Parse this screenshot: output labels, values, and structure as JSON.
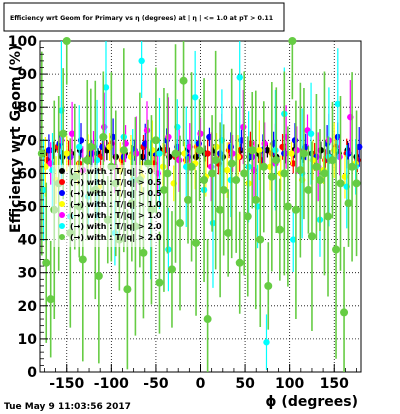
{
  "chart_data": {
    "type": "scatter",
    "title": "Efficiency wrt Geom for Primary vs η (degrees) at | η | <= 1.0 at pT > 0.11",
    "xlabel": "ϕ (degrees)",
    "ylabel": "Efficiency wrt Geom (%)",
    "xlim": [
      -180,
      180
    ],
    "ylim": [
      0,
      100
    ],
    "x_ticks": [
      "-150",
      "-100",
      "-50",
      "0",
      "50",
      "100",
      "150"
    ],
    "y_ticks": [
      "0",
      "10",
      "20",
      "30",
      "40",
      "50",
      "60",
      "70",
      "80",
      "90",
      "100"
    ],
    "grid": true,
    "legend_position": "left",
    "timestamp": "Tue May  9 11:03:56 2017",
    "legend": [
      {
        "label": "(→) with : T/|q| > 0",
        "color": "#000000"
      },
      {
        "label": "(→) with : T/|q| > 0.5",
        "color": "#ff0000"
      },
      {
        "label": "(→) with : T/|q| > 0.5",
        "color": "#0000ff"
      },
      {
        "label": "(→) with : T/|q| > 1.0",
        "color": "#ffff00"
      },
      {
        "label": "(→) with : T/|q| > 1.0",
        "color": "#ff00ff"
      },
      {
        "label": "(→) with : T/|q| > 2.0",
        "color": "#00ffff"
      },
      {
        "label": "(→) with : T/|q| > 2.0",
        "color": "#66cc44"
      }
    ],
    "series": [
      {
        "color": "#000000",
        "points": [
          [
            -175,
            66
          ],
          [
            -165,
            67
          ],
          [
            -155,
            65
          ],
          [
            -145,
            66
          ],
          [
            -135,
            67
          ],
          [
            -125,
            65
          ],
          [
            -115,
            66
          ],
          [
            -105,
            67
          ],
          [
            -95,
            65
          ],
          [
            -85,
            66
          ],
          [
            -75,
            67
          ],
          [
            -65,
            65
          ],
          [
            -55,
            66
          ],
          [
            -45,
            67
          ],
          [
            -35,
            65
          ],
          [
            -25,
            66
          ],
          [
            -15,
            67
          ],
          [
            -5,
            65
          ],
          [
            5,
            66
          ],
          [
            15,
            67
          ],
          [
            25,
            65
          ],
          [
            35,
            66
          ],
          [
            45,
            67
          ],
          [
            55,
            65
          ],
          [
            65,
            66
          ],
          [
            75,
            67
          ],
          [
            85,
            65
          ],
          [
            95,
            66
          ],
          [
            105,
            67
          ],
          [
            115,
            65
          ],
          [
            125,
            66
          ],
          [
            135,
            67
          ],
          [
            145,
            65
          ],
          [
            155,
            66
          ],
          [
            165,
            67
          ],
          [
            175,
            65
          ]
        ]
      },
      {
        "color": "#ff0000",
        "points": [
          [
            -172,
            64
          ],
          [
            -160,
            68
          ],
          [
            -148,
            66
          ],
          [
            -136,
            63
          ],
          [
            -124,
            67
          ],
          [
            -112,
            65
          ],
          [
            -100,
            69
          ],
          [
            -88,
            64
          ],
          [
            -76,
            66
          ],
          [
            -64,
            68
          ],
          [
            -52,
            63
          ],
          [
            -40,
            67
          ],
          [
            -28,
            65
          ],
          [
            -16,
            64
          ],
          [
            -4,
            68
          ],
          [
            8,
            66
          ],
          [
            20,
            63
          ],
          [
            32,
            67
          ],
          [
            44,
            65
          ],
          [
            56,
            69
          ],
          [
            68,
            64
          ],
          [
            80,
            66
          ],
          [
            92,
            68
          ],
          [
            104,
            63
          ],
          [
            116,
            67
          ],
          [
            128,
            65
          ],
          [
            140,
            64
          ],
          [
            152,
            68
          ],
          [
            164,
            66
          ],
          [
            176,
            64
          ]
        ]
      },
      {
        "color": "#0000ff",
        "points": [
          [
            -170,
            67
          ],
          [
            -158,
            69
          ],
          [
            -146,
            65
          ],
          [
            -134,
            70
          ],
          [
            -122,
            66
          ],
          [
            -110,
            68
          ],
          [
            -98,
            71
          ],
          [
            -86,
            65
          ],
          [
            -74,
            67
          ],
          [
            -62,
            69
          ],
          [
            -50,
            66
          ],
          [
            -38,
            70
          ],
          [
            -26,
            68
          ],
          [
            -14,
            65
          ],
          [
            -2,
            69
          ],
          [
            10,
            71
          ],
          [
            22,
            66
          ],
          [
            34,
            68
          ],
          [
            46,
            70
          ],
          [
            58,
            65
          ],
          [
            70,
            67
          ],
          [
            82,
            69
          ],
          [
            94,
            66
          ],
          [
            106,
            70
          ],
          [
            118,
            68
          ],
          [
            130,
            65
          ],
          [
            142,
            69
          ],
          [
            154,
            71
          ],
          [
            166,
            66
          ],
          [
            178,
            68
          ]
        ]
      },
      {
        "color": "#ffff00",
        "points": [
          [
            -174,
            62
          ],
          [
            -162,
            58
          ],
          [
            -150,
            66
          ],
          [
            -138,
            60
          ],
          [
            -126,
            64
          ],
          [
            -114,
            56
          ],
          [
            -102,
            68
          ],
          [
            -90,
            61
          ],
          [
            -78,
            65
          ],
          [
            -66,
            59
          ],
          [
            -54,
            67
          ],
          [
            -42,
            62
          ],
          [
            -30,
            57
          ],
          [
            -18,
            66
          ],
          [
            -6,
            63
          ],
          [
            6,
            59
          ],
          [
            18,
            68
          ],
          [
            30,
            61
          ],
          [
            42,
            65
          ],
          [
            54,
            57
          ],
          [
            66,
            67
          ],
          [
            78,
            62
          ],
          [
            90,
            60
          ],
          [
            102,
            66
          ],
          [
            114,
            58
          ],
          [
            126,
            64
          ],
          [
            138,
            61
          ],
          [
            150,
            67
          ],
          [
            162,
            59
          ],
          [
            174,
            63
          ]
        ]
      },
      {
        "color": "#ff00ff",
        "points": [
          [
            -168,
            63
          ],
          [
            -156,
            70
          ],
          [
            -144,
            72
          ],
          [
            -132,
            61
          ],
          [
            -120,
            68
          ],
          [
            -108,
            74
          ],
          [
            -96,
            62
          ],
          [
            -84,
            69
          ],
          [
            -72,
            66
          ],
          [
            -60,
            73
          ],
          [
            -48,
            60
          ],
          [
            -36,
            71
          ],
          [
            -24,
            64
          ],
          [
            -12,
            68
          ],
          [
            0,
            72
          ],
          [
            12,
            62
          ],
          [
            24,
            70
          ],
          [
            36,
            66
          ],
          [
            48,
            74
          ],
          [
            60,
            61
          ],
          [
            72,
            69
          ],
          [
            84,
            63
          ],
          [
            96,
            71
          ],
          [
            108,
            67
          ],
          [
            120,
            73
          ],
          [
            132,
            62
          ],
          [
            144,
            70
          ],
          [
            156,
            65
          ],
          [
            168,
            77
          ]
        ]
      },
      {
        "color": "#00ffff",
        "points": [
          [
            -176,
            55
          ],
          [
            -166,
            61
          ],
          [
            -156,
            79
          ],
          [
            -146,
            47
          ],
          [
            -136,
            68
          ],
          [
            -126,
            53
          ],
          [
            -116,
            64
          ],
          [
            -106,
            86
          ],
          [
            -96,
            42
          ],
          [
            -86,
            71
          ],
          [
            -76,
            58
          ],
          [
            -66,
            94
          ],
          [
            -56,
            49
          ],
          [
            -46,
            66
          ],
          [
            -36,
            37
          ],
          [
            -26,
            74
          ],
          [
            -16,
            62
          ],
          [
            -6,
            83
          ],
          [
            4,
            55
          ],
          [
            14,
            45
          ],
          [
            24,
            70
          ],
          [
            34,
            58
          ],
          [
            44,
            89
          ],
          [
            54,
            62
          ],
          [
            64,
            50
          ],
          [
            74,
            9
          ],
          [
            84,
            67
          ],
          [
            94,
            78
          ],
          [
            104,
            40
          ],
          [
            114,
            60
          ],
          [
            124,
            72
          ],
          [
            134,
            46
          ],
          [
            144,
            65
          ],
          [
            154,
            81
          ],
          [
            164,
            56
          ],
          [
            174,
            62
          ]
        ]
      },
      {
        "color": "#66cc44",
        "points": [
          [
            -178,
            66
          ],
          [
            -173,
            33
          ],
          [
            -168,
            22
          ],
          [
            -164,
            49
          ],
          [
            -159,
            57
          ],
          [
            -154,
            72
          ],
          [
            -150,
            100
          ],
          [
            -146,
            42
          ],
          [
            -141,
            59
          ],
          [
            -136,
            50
          ],
          [
            -132,
            34
          ],
          [
            -127,
            64
          ],
          [
            -123,
            68
          ],
          [
            -118,
            55
          ],
          [
            -114,
            29
          ],
          [
            -109,
            71
          ],
          [
            -104,
            46
          ],
          [
            -100,
            62
          ],
          [
            -95,
            57
          ],
          [
            -91,
            40
          ],
          [
            -86,
            67
          ],
          [
            -82,
            25
          ],
          [
            -77,
            51
          ],
          [
            -73,
            44
          ],
          [
            -68,
            58
          ],
          [
            -64,
            36
          ],
          [
            -59,
            63
          ],
          [
            -55,
            49
          ],
          [
            -50,
            70
          ],
          [
            -46,
            27
          ],
          [
            -41,
            55
          ],
          [
            -37,
            60
          ],
          [
            -32,
            31
          ],
          [
            -28,
            66
          ],
          [
            -23,
            45
          ],
          [
            -19,
            88
          ],
          [
            -14,
            52
          ],
          [
            -10,
            62
          ],
          [
            -5,
            39
          ],
          [
            -1,
            67
          ],
          [
            4,
            58
          ],
          [
            8,
            16
          ],
          [
            13,
            60
          ],
          [
            17,
            64
          ],
          [
            22,
            49
          ],
          [
            26,
            55
          ],
          [
            31,
            42
          ],
          [
            35,
            63
          ],
          [
            40,
            58
          ],
          [
            44,
            33
          ],
          [
            49,
            60
          ],
          [
            53,
            47
          ],
          [
            58,
            67
          ],
          [
            62,
            52
          ],
          [
            67,
            40
          ],
          [
            71,
            62
          ],
          [
            76,
            26
          ],
          [
            80,
            59
          ],
          [
            85,
            64
          ],
          [
            89,
            43
          ],
          [
            94,
            60
          ],
          [
            98,
            50
          ],
          [
            103,
            100
          ],
          [
            107,
            49
          ],
          [
            112,
            61
          ],
          [
            116,
            66
          ],
          [
            121,
            55
          ],
          [
            125,
            41
          ],
          [
            130,
            62
          ],
          [
            134,
            58
          ],
          [
            139,
            60
          ],
          [
            143,
            47
          ],
          [
            148,
            64
          ],
          [
            152,
            37
          ],
          [
            157,
            57
          ],
          [
            161,
            18
          ],
          [
            166,
            51
          ],
          [
            170,
            62
          ],
          [
            175,
            57
          ]
        ]
      }
    ]
  }
}
